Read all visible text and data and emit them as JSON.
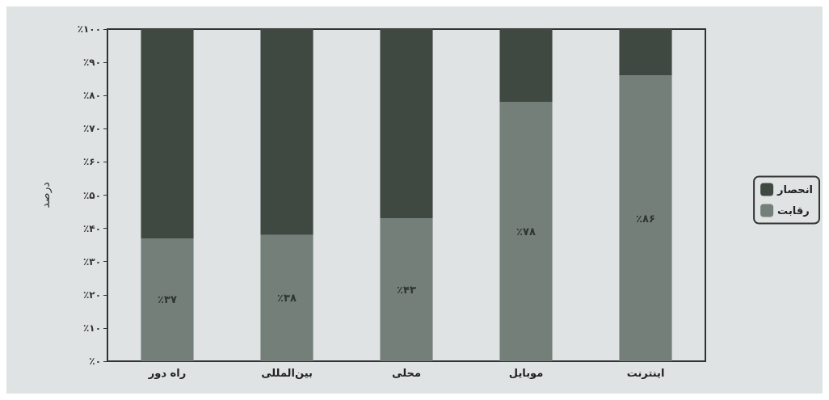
{
  "chart_data": {
    "type": "bar",
    "stacked": true,
    "ylabel": "درصد",
    "categories": [
      "راه دور",
      "بین‌المللی",
      "محلی",
      "موبایل",
      "اینترنت"
    ],
    "series": [
      {
        "name": "رقابت",
        "color": "#737f78",
        "values": [
          37,
          38,
          43,
          78,
          86
        ],
        "value_labels": [
          "٪۳۷",
          "٪۳۸",
          "٪۴۳",
          "٪۷۸",
          "٪۸۶"
        ]
      },
      {
        "name": "انحصار",
        "color": "#3f4942",
        "values": [
          63,
          62,
          57,
          22,
          14
        ]
      }
    ],
    "ylim": [
      0,
      100
    ],
    "yticks": [
      {
        "value": 0,
        "label": "٪۰"
      },
      {
        "value": 10,
        "label": "٪۱۰"
      },
      {
        "value": 20,
        "label": "٪۲۰"
      },
      {
        "value": 30,
        "label": "٪۳۰"
      },
      {
        "value": 40,
        "label": "٪۴۰"
      },
      {
        "value": 50,
        "label": "٪۵۰"
      },
      {
        "value": 60,
        "label": "٪۶۰"
      },
      {
        "value": 70,
        "label": "٪۷۰"
      },
      {
        "value": 80,
        "label": "٪۸۰"
      },
      {
        "value": 90,
        "label": "٪۹۰"
      },
      {
        "value": 100,
        "label": "٪۱۰۰"
      }
    ],
    "grid": false,
    "legend": "right"
  }
}
